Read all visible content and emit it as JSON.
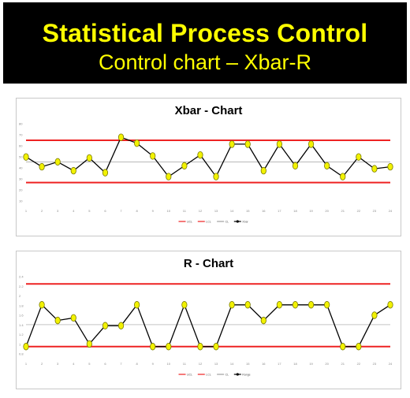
{
  "banner": {
    "title": "Statistical Process Control",
    "subtitle": "Control chart – Xbar-R",
    "background": "#000000",
    "text_color": "#ffff00"
  },
  "colors": {
    "limit_line": "#ee2222",
    "center_line": "#a0a0a0",
    "data_line": "#000000",
    "marker_fill": "#f2f200",
    "marker_stroke": "#7a7a00"
  },
  "chart_data": [
    {
      "type": "line",
      "title": "Xbar - Chart",
      "xlabel": "",
      "ylabel": "",
      "categories": [
        "1",
        "2",
        "3",
        "4",
        "5",
        "6",
        "7",
        "8",
        "9",
        "10",
        "11",
        "12",
        "13",
        "14",
        "15",
        "16",
        "17",
        "18",
        "19",
        "20",
        "21",
        "22",
        "23",
        "24"
      ],
      "y_ticks": [
        "80",
        "70",
        "60",
        "50",
        "40",
        "30",
        "20",
        "10"
      ],
      "ylim": [
        5,
        90
      ],
      "series": [
        {
          "values": [
            53,
            43,
            48,
            39,
            52,
            37,
            73,
            67,
            54,
            33,
            44,
            55,
            33,
            66,
            66,
            39,
            66,
            44,
            66,
            44,
            33,
            53,
            41,
            43
          ]
        }
      ],
      "ucl": 70,
      "center": 48,
      "lcl": 27,
      "legend": [
        "UCL",
        "LCL",
        "CL",
        "Xbar"
      ],
      "legend_position": "bottom",
      "grid": false
    },
    {
      "type": "line",
      "title": "R - Chart",
      "xlabel": "",
      "ylabel": "",
      "categories": [
        "1",
        "2",
        "3",
        "4",
        "5",
        "6",
        "7",
        "8",
        "9",
        "10",
        "11",
        "12",
        "13",
        "14",
        "15",
        "16",
        "17",
        "18",
        "19",
        "20",
        "21",
        "22",
        "23",
        "24"
      ],
      "y_ticks": [
        "2.4",
        "2.2",
        "2",
        "1.8",
        "1.6",
        "1.4",
        "1.2",
        "1",
        "0.8"
      ],
      "ylim": [
        0.8,
        2.4
      ],
      "series": [
        {
          "values": [
            1.0,
            1.8,
            1.5,
            1.55,
            1.05,
            1.4,
            1.4,
            1.8,
            1.0,
            1.0,
            1.8,
            1.0,
            1.0,
            1.8,
            1.8,
            1.5,
            1.8,
            1.8,
            1.8,
            1.8,
            1.0,
            1.0,
            1.6,
            1.8
          ]
        }
      ],
      "ucl": 2.2,
      "center": 1.42,
      "lcl": 1.0,
      "legend": [
        "UCL",
        "LCL",
        "CL",
        "Range"
      ],
      "legend_position": "bottom",
      "grid": false
    }
  ]
}
